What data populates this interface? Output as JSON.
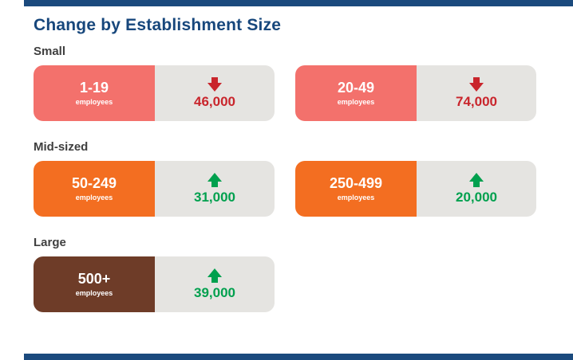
{
  "title": "Change by Establishment Size",
  "colors": {
    "navy_accent": "#1b4a7d",
    "title_blue": "#17477c",
    "salmon": "#f3716c",
    "orange": "#f36e21",
    "brown": "#6e3c28",
    "card_gray": "#e5e4e1",
    "decrease_red": "#c9252c",
    "increase_green": "#00a04e"
  },
  "sections": [
    {
      "label": "Small",
      "cards": [
        {
          "range": "1-19",
          "unit": "employees",
          "value": "46,000",
          "direction": "down",
          "theme": "salmon"
        },
        {
          "range": "20-49",
          "unit": "employees",
          "value": "74,000",
          "direction": "down",
          "theme": "salmon"
        }
      ]
    },
    {
      "label": "Mid-sized",
      "cards": [
        {
          "range": "50-249",
          "unit": "employees",
          "value": "31,000",
          "direction": "up",
          "theme": "orange"
        },
        {
          "range": "250-499",
          "unit": "employees",
          "value": "20,000",
          "direction": "up",
          "theme": "orange"
        }
      ]
    },
    {
      "label": "Large",
      "cards": [
        {
          "range": "500+",
          "unit": "employees",
          "value": "39,000",
          "direction": "up",
          "theme": "brown"
        }
      ]
    }
  ],
  "chart_data": {
    "type": "table",
    "title": "Change by Establishment Size",
    "groups": [
      "Small",
      "Small",
      "Mid-sized",
      "Mid-sized",
      "Large"
    ],
    "categories": [
      "1-19 employees",
      "20-49 employees",
      "50-249 employees",
      "250-499 employees",
      "500+ employees"
    ],
    "values": [
      -46000,
      -74000,
      31000,
      20000,
      39000
    ],
    "directions": [
      "down",
      "down",
      "up",
      "up",
      "up"
    ]
  }
}
